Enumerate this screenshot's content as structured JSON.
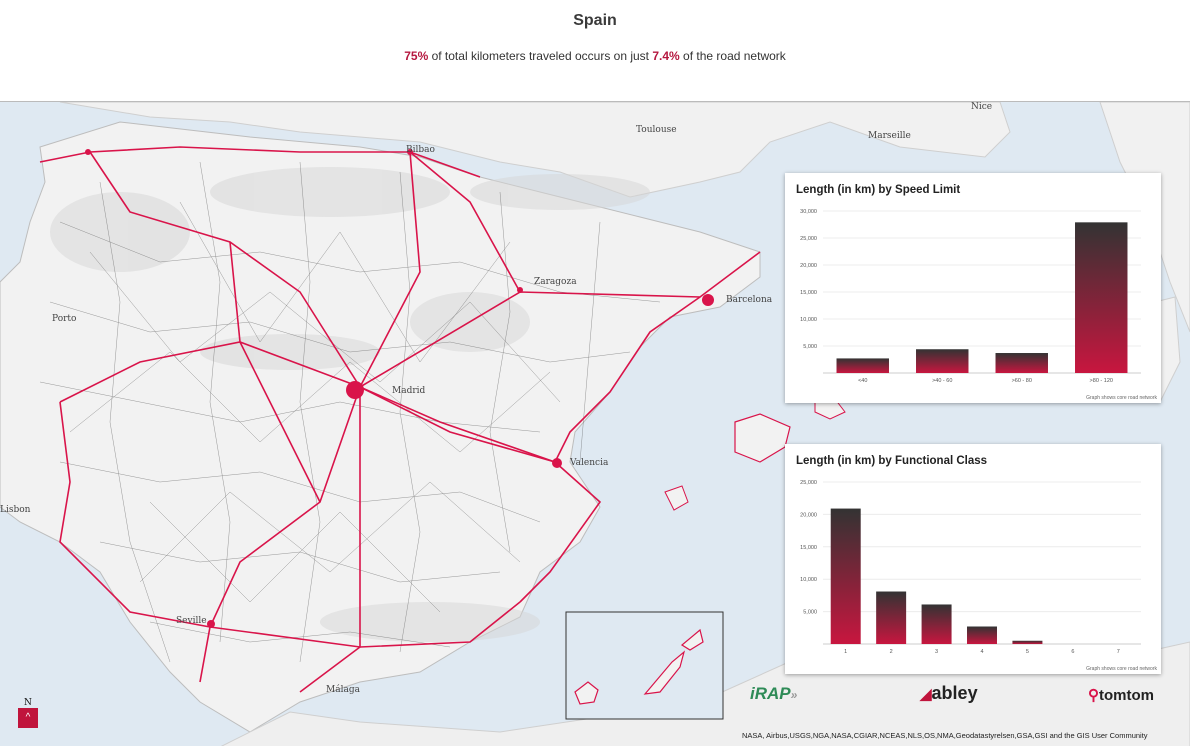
{
  "header": {
    "title": "Spain",
    "subtitle_parts": {
      "pct_km": "75%",
      "mid": " of total kilometers traveled occurs on just ",
      "pct_net": "7.4%",
      "end": " of the road network"
    }
  },
  "map": {
    "cities": [
      "Toulouse",
      "Marseille",
      "Nice",
      "Bilbao",
      "Zaragoza",
      "Barcelona",
      "Porto",
      "Madrid",
      "Valencia",
      "Lisbon",
      "Seville",
      "Málaga"
    ],
    "colors": {
      "sea": "#dfe9f2",
      "land": "#f2f2f2",
      "primary_roads": "#d9144a",
      "minor_roads": "#3a3a3a"
    }
  },
  "chart_data": [
    {
      "type": "bar",
      "title": "Length (in km) by Speed Limit",
      "categories": [
        "<40",
        ">40 - 60",
        ">60 - 80",
        ">80 - 120"
      ],
      "values": [
        2700,
        4400,
        3700,
        27900
      ],
      "ylim": [
        0,
        30000
      ],
      "yticks": [
        "30,000",
        "25,000",
        "20,000",
        "15,000",
        "10,000",
        "5,000"
      ],
      "note": "Graph shows core road network"
    },
    {
      "type": "bar",
      "title": "Length (in km) by Functional Class",
      "categories": [
        "1",
        "2",
        "3",
        "4",
        "5",
        "6",
        "7"
      ],
      "values": [
        20900,
        8100,
        6100,
        2700,
        500,
        0,
        0
      ],
      "ylim": [
        0,
        25000
      ],
      "yticks": [
        "25,000",
        "20,000",
        "15,000",
        "10,000",
        "5,000"
      ],
      "note": "Graph shows core road network"
    }
  ],
  "logos": {
    "irap": "iRAP",
    "abley": "abley",
    "tomtom": "tomtom"
  },
  "credit": "NASA, Airbus,USGS,NGA,NASA,CGIAR,NCEAS,NLS,OS,NMA,Geodatastyrelsen,GSA,GSI and the GIS User Community",
  "controls": {
    "up_button": "^",
    "north": "N"
  }
}
